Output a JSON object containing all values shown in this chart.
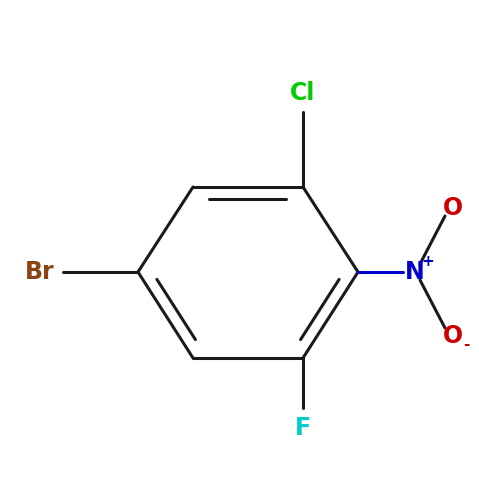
{
  "background_color": "#ffffff",
  "ring_color": "#1a1a1a",
  "bond_width": 2.2,
  "figsize": [
    4.79,
    4.79
  ],
  "dpi": 100,
  "cl_label": "Cl",
  "cl_color": "#00cc00",
  "br_label": "Br",
  "br_color": "#8b4513",
  "f_label": "F",
  "f_color": "#00cccc",
  "n_label": "N",
  "n_color": "#0000cc",
  "o_label": "O",
  "o_color": "#cc0000",
  "font_size": 17,
  "sup_font_size": 11
}
